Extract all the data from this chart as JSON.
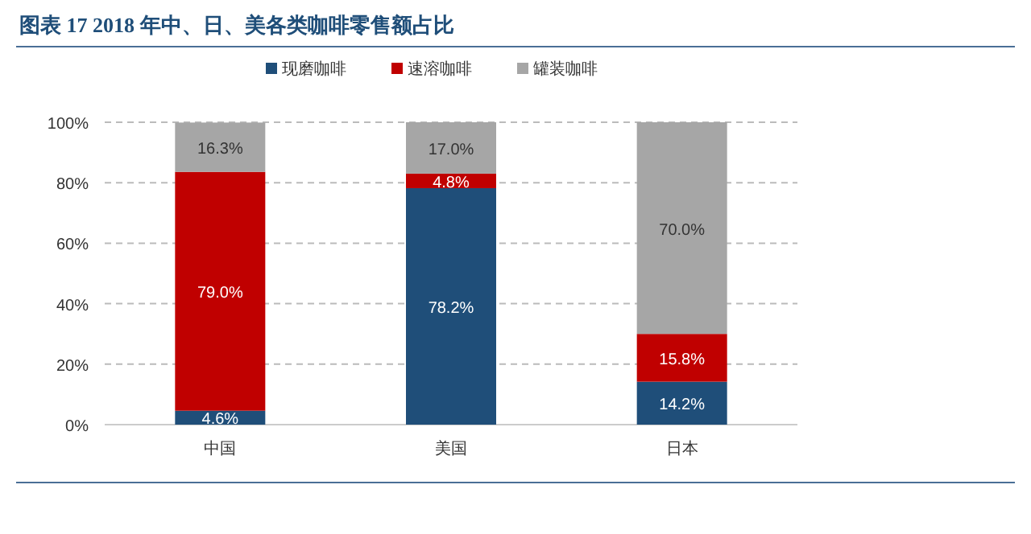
{
  "chart_data": {
    "type": "bar",
    "title": "图表 17   2018 年中、日、美各类咖啡零售额占比",
    "categories": [
      "中国",
      "美国",
      "日本"
    ],
    "stacked": true,
    "legend": "top",
    "grid": "y",
    "ylim": [
      0,
      100
    ],
    "yticks": [
      {
        "value": 0,
        "label": "0%"
      },
      {
        "value": 20,
        "label": "20%"
      },
      {
        "value": 40,
        "label": "40%"
      },
      {
        "value": 60,
        "label": "60%"
      },
      {
        "value": 80,
        "label": "80%"
      },
      {
        "value": 100,
        "label": "100%"
      }
    ],
    "series": [
      {
        "name": "现磨咖啡",
        "color": "#1f4e79",
        "values": [
          4.6,
          78.2,
          14.2
        ],
        "value_labels": [
          "4.6%",
          "78.2%",
          "14.2%"
        ]
      },
      {
        "name": "速溶咖啡",
        "color": "#c00000",
        "values": [
          79.0,
          4.8,
          15.8
        ],
        "value_labels": [
          "79.0%",
          "4.8%",
          "15.8%"
        ]
      },
      {
        "name": "罐装咖啡",
        "color": "#a6a6a6",
        "values": [
          16.3,
          17.0,
          70.0
        ],
        "value_labels": [
          "16.3%",
          "17.0%",
          "70.0%"
        ]
      }
    ]
  }
}
